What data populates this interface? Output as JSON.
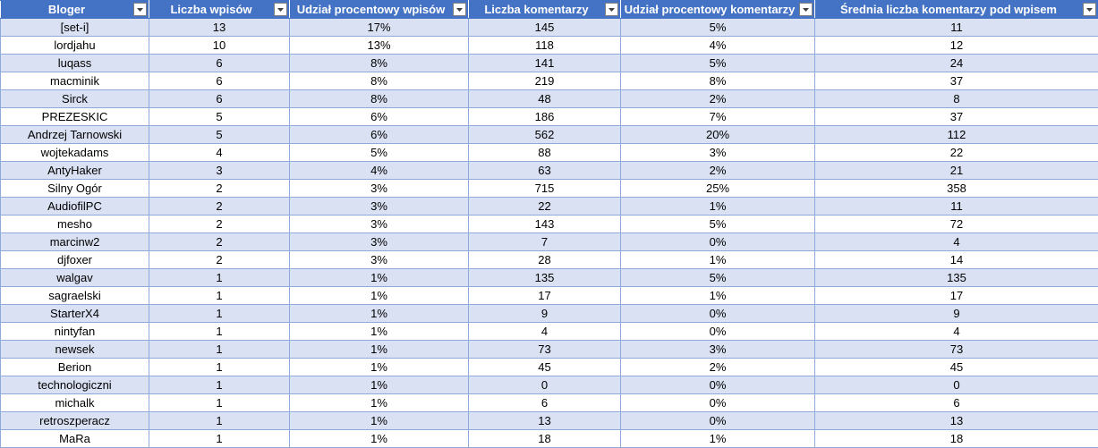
{
  "headers": [
    "Bloger",
    "Liczba wpisów",
    "Udział procentowy wpisów",
    "Liczba komentarzy",
    "Udział procentowy komentarzy",
    "Średnia liczba komentarzy pod wpisem"
  ],
  "rows": [
    [
      "[set-i]",
      "13",
      "17%",
      "145",
      "5%",
      "11"
    ],
    [
      "lordjahu",
      "10",
      "13%",
      "118",
      "4%",
      "12"
    ],
    [
      "luqass",
      "6",
      "8%",
      "141",
      "5%",
      "24"
    ],
    [
      "macminik",
      "6",
      "8%",
      "219",
      "8%",
      "37"
    ],
    [
      "Sirck",
      "6",
      "8%",
      "48",
      "2%",
      "8"
    ],
    [
      "PREZESKIC",
      "5",
      "6%",
      "186",
      "7%",
      "37"
    ],
    [
      "Andrzej Tarnowski",
      "5",
      "6%",
      "562",
      "20%",
      "112"
    ],
    [
      "wojtekadams",
      "4",
      "5%",
      "88",
      "3%",
      "22"
    ],
    [
      "AntyHaker",
      "3",
      "4%",
      "63",
      "2%",
      "21"
    ],
    [
      "Silny Ogór",
      "2",
      "3%",
      "715",
      "25%",
      "358"
    ],
    [
      "AudiofilPC",
      "2",
      "3%",
      "22",
      "1%",
      "11"
    ],
    [
      "mesho",
      "2",
      "3%",
      "143",
      "5%",
      "72"
    ],
    [
      "marcinw2",
      "2",
      "3%",
      "7",
      "0%",
      "4"
    ],
    [
      "djfoxer",
      "2",
      "3%",
      "28",
      "1%",
      "14"
    ],
    [
      "walgav",
      "1",
      "1%",
      "135",
      "5%",
      "135"
    ],
    [
      "sagraelski",
      "1",
      "1%",
      "17",
      "1%",
      "17"
    ],
    [
      "StarterX4",
      "1",
      "1%",
      "9",
      "0%",
      "9"
    ],
    [
      "nintyfan",
      "1",
      "1%",
      "4",
      "0%",
      "4"
    ],
    [
      "newsek",
      "1",
      "1%",
      "73",
      "3%",
      "73"
    ],
    [
      "Berion",
      "1",
      "1%",
      "45",
      "2%",
      "45"
    ],
    [
      "technologiczni",
      "1",
      "1%",
      "0",
      "0%",
      "0"
    ],
    [
      "michalk",
      "1",
      "1%",
      "6",
      "0%",
      "6"
    ],
    [
      "retroszperacz",
      "1",
      "1%",
      "13",
      "0%",
      "13"
    ],
    [
      "MaRa",
      "1",
      "1%",
      "18",
      "1%",
      "18"
    ]
  ],
  "colors": {
    "header_bg": "#4472c4",
    "band_bg": "#d9e1f2",
    "grid": "#8ea9db"
  },
  "icons": {
    "filter": "filter-dropdown-icon"
  }
}
